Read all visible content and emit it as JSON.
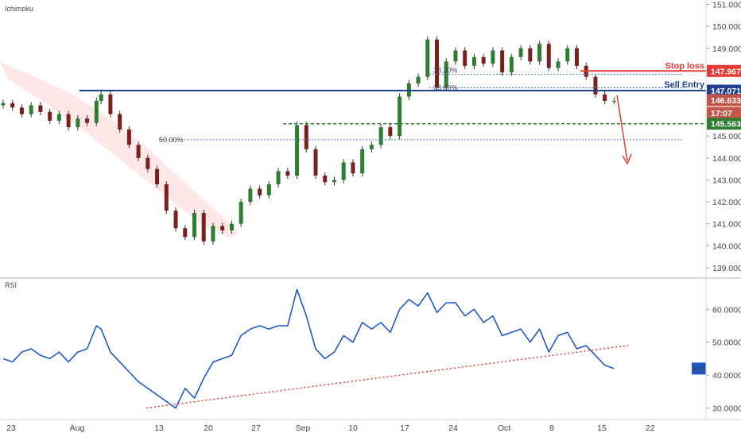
{
  "colors": {
    "up_candle": "#2e7d32",
    "down_candle": "#7b1f1f",
    "wick": "#333333",
    "cloud": "#f8bbbb",
    "resistance_line": "#1f3f8f",
    "support_line": "#2e7d32",
    "fib_line": "#4a78c8",
    "stop_loss": "#e53935",
    "arrow": "#e53935",
    "rsi_line": "#2158c9",
    "trendline": "#e53935",
    "axis_text": "#434651",
    "price_tag_blue": "#1f3f8f",
    "price_tag_red": "#e53935",
    "price_tag_brown": "#c4574c",
    "price_tag_green": "#2e7d32"
  },
  "chart_data": [
    {
      "type": "line",
      "title": "Ichimoku",
      "xlabel": "",
      "ylabel": "",
      "ylim": [
        138.6,
        151.2
      ],
      "ytick_labels": [
        "139.000",
        "140.000",
        "141.000",
        "142.000",
        "143.000",
        "144.000",
        "145.000",
        "146.000",
        "147.000",
        "148.000",
        "149.000",
        "150.000",
        "151.000"
      ],
      "x_tick_labels": [
        "23",
        "Aug",
        "13",
        "20",
        "27",
        "Sep",
        "10",
        "17",
        "24",
        "Oct",
        "8",
        "15",
        "22"
      ],
      "price_tags": [
        {
          "name": "stop-loss",
          "value": "147.967"
        },
        {
          "name": "sell-entry",
          "value": "147.071"
        },
        {
          "name": "last-price",
          "value": "146.633"
        },
        {
          "name": "countdown",
          "value": "17:07"
        },
        {
          "name": "support",
          "value": "145.563"
        }
      ],
      "annotations": {
        "stop_loss": "Stop loss",
        "sell_entry": "Sell Entry",
        "fib_382": "38.20%",
        "fib_236": "23.60%",
        "fib_50": "50.00%"
      },
      "levels": {
        "stop_loss": 147.967,
        "sell_entry": 147.071,
        "support": 145.563,
        "fib_382": 147.82,
        "fib_236": 147.2,
        "fib_50": 144.83
      },
      "series": [
        {
          "x_index": [
            0,
            4,
            8,
            12,
            16,
            20,
            24,
            28,
            32,
            36,
            40,
            42,
            46,
            50,
            54,
            58,
            62,
            66,
            70,
            74,
            78,
            82,
            86,
            90,
            94,
            98,
            102,
            106,
            110,
            114,
            118,
            122,
            126,
            130,
            134,
            138,
            142,
            146,
            150,
            154,
            158,
            162,
            166,
            170,
            174,
            178,
            182,
            186,
            190,
            194,
            198,
            202,
            206,
            210,
            214,
            218,
            222,
            226,
            230,
            234,
            238,
            242,
            246,
            250,
            254,
            258,
            262
          ],
          "values": [
            146.5,
            146.3,
            146.0,
            146.4,
            146.1,
            145.7,
            146.0,
            145.4,
            145.8,
            145.6,
            146.6,
            146.9,
            146.0,
            145.3,
            144.6,
            144.0,
            143.5,
            142.8,
            141.6,
            140.8,
            140.4,
            141.5,
            140.2,
            140.9,
            140.7,
            141.0,
            142.0,
            142.6,
            142.3,
            142.8,
            143.4,
            143.2,
            145.5,
            144.4,
            143.2,
            142.9,
            143.0,
            143.8,
            143.3,
            144.4,
            144.6,
            145.4,
            145.0,
            146.8,
            147.4,
            147.7,
            149.4,
            147.2,
            148.4,
            148.9,
            148.2,
            148.6,
            148.3,
            148.9,
            147.9,
            148.6,
            149.0,
            148.4,
            149.2,
            148.1,
            148.4,
            149.0,
            148.2,
            147.7,
            146.9,
            146.6,
            146.6
          ]
        }
      ]
    },
    {
      "type": "line",
      "title": "RSI",
      "xlabel": "",
      "ylabel": "",
      "ylim": [
        27,
        69
      ],
      "ytick_labels": [
        "30.0000",
        "40.0000",
        "50.0000",
        "60.0000"
      ],
      "tag": "RSI",
      "series": [
        {
          "x_index": [
            0,
            4,
            8,
            12,
            16,
            20,
            24,
            28,
            32,
            36,
            40,
            42,
            46,
            50,
            54,
            58,
            62,
            66,
            70,
            74,
            78,
            82,
            86,
            90,
            94,
            98,
            102,
            106,
            110,
            114,
            118,
            122,
            126,
            130,
            134,
            138,
            142,
            146,
            150,
            154,
            158,
            162,
            166,
            170,
            174,
            178,
            182,
            186,
            190,
            194,
            198,
            202,
            206,
            210,
            214,
            218,
            222,
            226,
            230,
            234,
            238,
            242,
            246,
            250,
            254,
            258,
            262
          ],
          "values": [
            45,
            44,
            47,
            48,
            46,
            45,
            47,
            44,
            47,
            48,
            55,
            54,
            47,
            44,
            41,
            38,
            36,
            34,
            32,
            30,
            36,
            33,
            39,
            44,
            45,
            46,
            52,
            54,
            55,
            54,
            55,
            55,
            66,
            58,
            48,
            45,
            47,
            52,
            50,
            56,
            54,
            56,
            53,
            60,
            63,
            61,
            65,
            59,
            62,
            62,
            58,
            60,
            56,
            58,
            52,
            53,
            54,
            50,
            54,
            47,
            52,
            53,
            48,
            49,
            46,
            43,
            42
          ]
        }
      ],
      "trendline": {
        "start": {
          "x_index": 0,
          "value": 30
        },
        "end": {
          "x_index": 268,
          "value": 49
        }
      }
    }
  ]
}
